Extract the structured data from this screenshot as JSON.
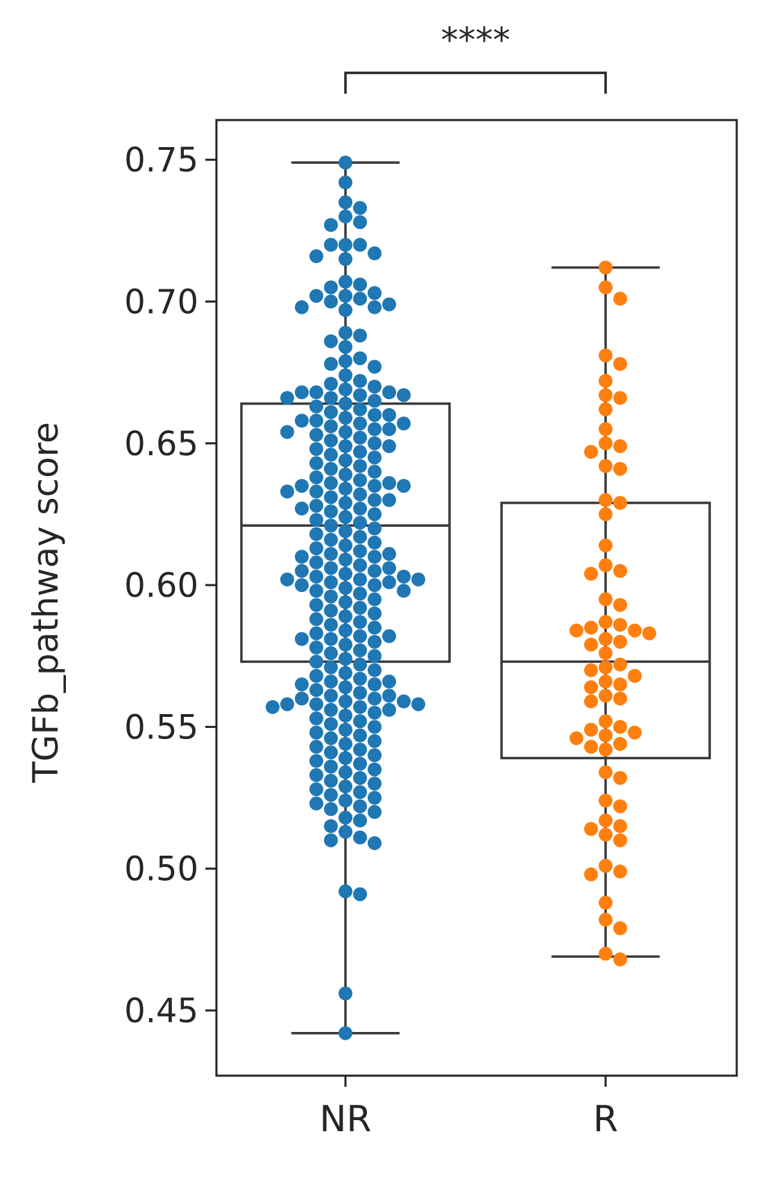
{
  "chart_data": {
    "type": "box-swarm",
    "title": "",
    "xlabel": "",
    "ylabel": "TGFb_pathway score",
    "ylim": [
      0.427,
      0.764
    ],
    "yticks": [
      0.45,
      0.5,
      0.55,
      0.6,
      0.65,
      0.7,
      0.75
    ],
    "ytick_labels": [
      "0.45",
      "0.50",
      "0.55",
      "0.60",
      "0.65",
      "0.70",
      "0.75"
    ],
    "categories": [
      "NR",
      "R"
    ],
    "significance": {
      "label": "****",
      "between": [
        "NR",
        "R"
      ]
    },
    "boxes": [
      {
        "category": "NR",
        "whisker_low": 0.442,
        "q1": 0.573,
        "median": 0.621,
        "q3": 0.664,
        "whisker_high": 0.749
      },
      {
        "category": "R",
        "whisker_low": 0.469,
        "q1": 0.539,
        "median": 0.573,
        "q3": 0.629,
        "whisker_high": 0.712
      }
    ],
    "series": [
      {
        "name": "NR",
        "color": "#1f77b4",
        "values": [
          0.749,
          0.742,
          0.735,
          0.733,
          0.73,
          0.728,
          0.727,
          0.72,
          0.72,
          0.72,
          0.717,
          0.716,
          0.715,
          0.707,
          0.706,
          0.705,
          0.703,
          0.702,
          0.702,
          0.701,
          0.7,
          0.699,
          0.698,
          0.698,
          0.697,
          0.689,
          0.688,
          0.686,
          0.684,
          0.68,
          0.679,
          0.678,
          0.677,
          0.674,
          0.672,
          0.671,
          0.67,
          0.669,
          0.668,
          0.668,
          0.668,
          0.667,
          0.667,
          0.666,
          0.666,
          0.665,
          0.664,
          0.663,
          0.662,
          0.661,
          0.66,
          0.66,
          0.659,
          0.658,
          0.658,
          0.657,
          0.657,
          0.656,
          0.655,
          0.655,
          0.654,
          0.654,
          0.653,
          0.652,
          0.651,
          0.65,
          0.649,
          0.649,
          0.648,
          0.647,
          0.646,
          0.645,
          0.644,
          0.643,
          0.642,
          0.641,
          0.64,
          0.639,
          0.638,
          0.637,
          0.636,
          0.636,
          0.635,
          0.635,
          0.635,
          0.634,
          0.633,
          0.633,
          0.632,
          0.631,
          0.63,
          0.63,
          0.629,
          0.628,
          0.627,
          0.627,
          0.626,
          0.625,
          0.624,
          0.623,
          0.622,
          0.621,
          0.62,
          0.619,
          0.618,
          0.617,
          0.616,
          0.615,
          0.614,
          0.613,
          0.612,
          0.611,
          0.611,
          0.61,
          0.61,
          0.609,
          0.608,
          0.607,
          0.606,
          0.606,
          0.605,
          0.605,
          0.604,
          0.603,
          0.603,
          0.602,
          0.602,
          0.602,
          0.601,
          0.601,
          0.6,
          0.6,
          0.599,
          0.598,
          0.598,
          0.597,
          0.596,
          0.595,
          0.594,
          0.593,
          0.592,
          0.591,
          0.59,
          0.589,
          0.588,
          0.587,
          0.586,
          0.585,
          0.584,
          0.583,
          0.582,
          0.582,
          0.581,
          0.581,
          0.58,
          0.579,
          0.578,
          0.577,
          0.576,
          0.575,
          0.574,
          0.573,
          0.572,
          0.571,
          0.57,
          0.569,
          0.568,
          0.567,
          0.566,
          0.566,
          0.565,
          0.565,
          0.564,
          0.563,
          0.562,
          0.561,
          0.561,
          0.56,
          0.56,
          0.559,
          0.559,
          0.558,
          0.558,
          0.558,
          0.557,
          0.557,
          0.556,
          0.556,
          0.555,
          0.554,
          0.553,
          0.552,
          0.551,
          0.55,
          0.549,
          0.548,
          0.547,
          0.546,
          0.545,
          0.544,
          0.543,
          0.542,
          0.541,
          0.54,
          0.539,
          0.538,
          0.537,
          0.536,
          0.535,
          0.534,
          0.533,
          0.532,
          0.531,
          0.53,
          0.529,
          0.528,
          0.527,
          0.526,
          0.525,
          0.524,
          0.523,
          0.522,
          0.521,
          0.52,
          0.518,
          0.517,
          0.515,
          0.513,
          0.511,
          0.51,
          0.509,
          0.492,
          0.491,
          0.456,
          0.442
        ]
      },
      {
        "name": "R",
        "color": "#ff7f0e",
        "values": [
          0.712,
          0.705,
          0.701,
          0.681,
          0.678,
          0.672,
          0.667,
          0.666,
          0.662,
          0.655,
          0.65,
          0.649,
          0.647,
          0.642,
          0.641,
          0.63,
          0.629,
          0.625,
          0.614,
          0.607,
          0.605,
          0.604,
          0.595,
          0.593,
          0.587,
          0.586,
          0.585,
          0.584,
          0.584,
          0.583,
          0.581,
          0.58,
          0.579,
          0.576,
          0.572,
          0.571,
          0.57,
          0.568,
          0.566,
          0.565,
          0.564,
          0.561,
          0.56,
          0.559,
          0.552,
          0.55,
          0.549,
          0.548,
          0.547,
          0.546,
          0.544,
          0.543,
          0.542,
          0.534,
          0.532,
          0.524,
          0.522,
          0.517,
          0.515,
          0.514,
          0.512,
          0.51,
          0.501,
          0.499,
          0.498,
          0.488,
          0.482,
          0.479,
          0.47,
          0.468
        ]
      }
    ]
  }
}
